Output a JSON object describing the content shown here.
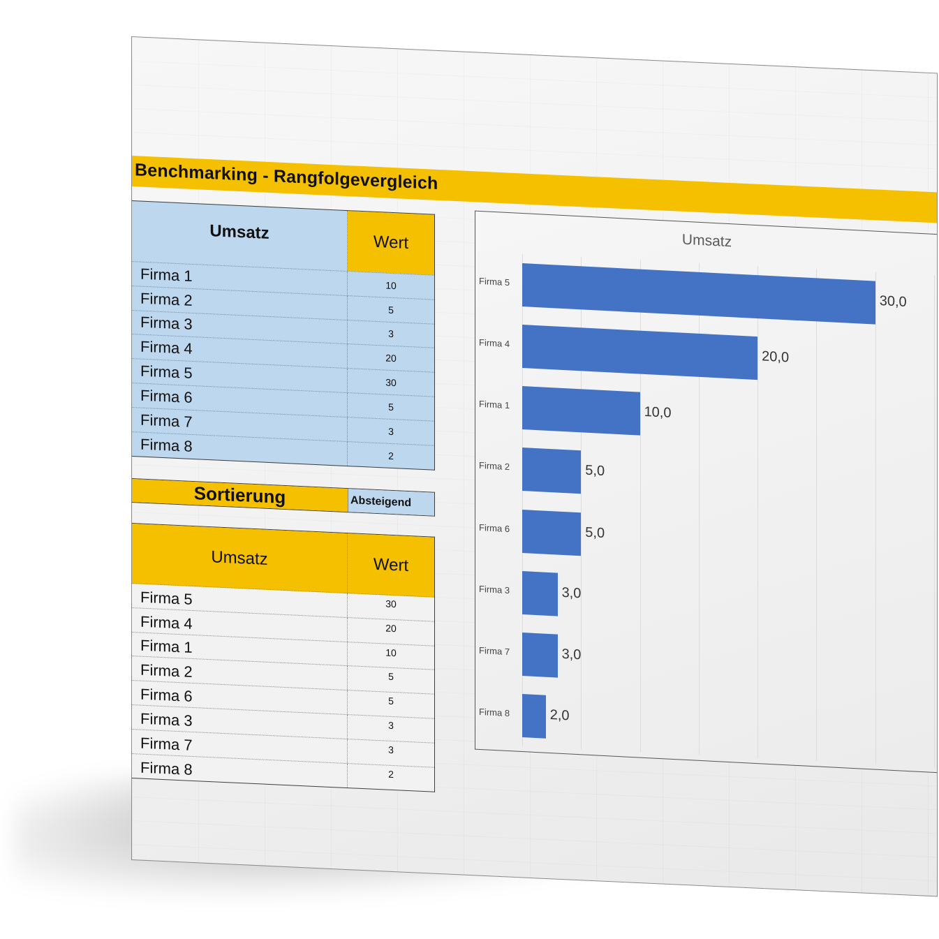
{
  "document": {
    "title": "Benchmarking - Rangfolgevergleich"
  },
  "colors": {
    "accent_gold": "#f5c000",
    "input_blue": "#bdd7ee",
    "bar_blue": "#4472c4"
  },
  "input_table": {
    "header_name": "Umsatz",
    "header_value": "Wert",
    "rows": [
      {
        "name": "Firma 1",
        "value": "10"
      },
      {
        "name": "Firma 2",
        "value": "5"
      },
      {
        "name": "Firma 3",
        "value": "3"
      },
      {
        "name": "Firma 4",
        "value": "20"
      },
      {
        "name": "Firma 5",
        "value": "30"
      },
      {
        "name": "Firma 6",
        "value": "5"
      },
      {
        "name": "Firma 7",
        "value": "3"
      },
      {
        "name": "Firma 8",
        "value": "2"
      }
    ]
  },
  "sorting": {
    "label": "Sortierung",
    "value": "Absteigend"
  },
  "sorted_table": {
    "header_name": "Umsatz",
    "header_value": "Wert",
    "rows": [
      {
        "name": "Firma 5",
        "value": "30"
      },
      {
        "name": "Firma 4",
        "value": "20"
      },
      {
        "name": "Firma 1",
        "value": "10"
      },
      {
        "name": "Firma 2",
        "value": "5"
      },
      {
        "name": "Firma 6",
        "value": "5"
      },
      {
        "name": "Firma 3",
        "value": "3"
      },
      {
        "name": "Firma 7",
        "value": "3"
      },
      {
        "name": "Firma 8",
        "value": "2"
      }
    ]
  },
  "chart_data": {
    "type": "bar",
    "orientation": "horizontal",
    "title": "Umsatz",
    "xlabel": "",
    "ylabel": "",
    "categories": [
      "Firma 5",
      "Firma 4",
      "Firma 1",
      "Firma 2",
      "Firma 6",
      "Firma 3",
      "Firma 7",
      "Firma 8"
    ],
    "values": [
      30,
      20,
      10,
      5,
      5,
      3,
      3,
      2
    ],
    "data_labels": [
      "30,0",
      "20,0",
      "10,0",
      "5,0",
      "5,0",
      "3,0",
      "3,0",
      "2,0"
    ],
    "xlim": [
      0,
      35
    ],
    "grid": true,
    "gridline_step": 5,
    "legend": "none",
    "axis_tick_labels_visible": false
  }
}
